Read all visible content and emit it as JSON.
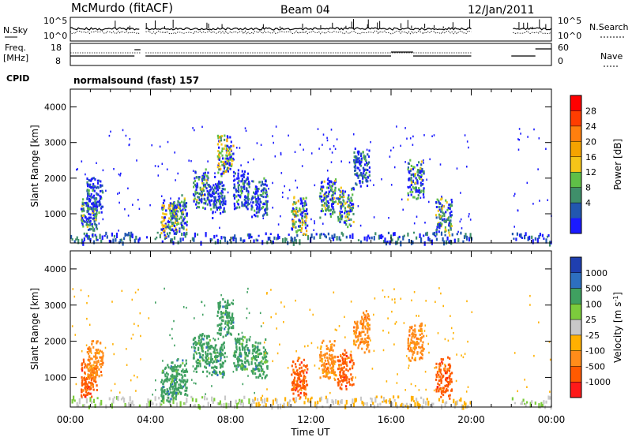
{
  "header": {
    "station": "McMurdo (fitACF)",
    "beam": "Beam 04",
    "date": "12/Jan/2011"
  },
  "top_panels": {
    "nsky_label": "N.Sky",
    "nsearch_label": "N.Search",
    "noise_ticks": [
      "10^5",
      "10^0"
    ],
    "freq_label": "Freq.",
    "freq_unit": "[MHz]",
    "freq_ticks": [
      "18",
      "8"
    ],
    "nave_label": "Nave",
    "nave_ticks": [
      "60",
      "0"
    ],
    "cpid_label": "CPID",
    "cpid_text": "normalsound (fast) 157"
  },
  "colors": {
    "power": [
      "#1a1aff",
      "#2257b0",
      "#3f8f6a",
      "#5fbf47",
      "#f5c518",
      "#f5a300",
      "#ff7f0e",
      "#ff3d00",
      "#ff0000"
    ],
    "velocity": [
      "#ff1a1a",
      "#ff5a00",
      "#ff8c1a",
      "#ffb000",
      "#c8c8c8",
      "#7ccc3c",
      "#3fa060",
      "#2d6fc0",
      "#1f3fb0"
    ]
  },
  "chart_data": [
    {
      "type": "heatmap",
      "title": "Power [dB]",
      "xlabel": "Time UT",
      "ylabel": "Slant Range [km]",
      "x_ticks": [
        "00:00",
        "04:00",
        "08:00",
        "12:00",
        "16:00",
        "20:00",
        "00:00"
      ],
      "xlim": [
        0,
        24
      ],
      "y_ticks": [
        1000,
        2000,
        3000,
        4000
      ],
      "ylim": [
        180,
        4500
      ],
      "colorbar": {
        "label": "Power [dB]",
        "ticks": [
          4,
          8,
          12,
          16,
          20,
          24,
          28
        ]
      },
      "data_gaps_hours": [
        [
          3.5,
          3.75
        ],
        [
          20.0,
          22.0
        ]
      ],
      "echo_features": [
        {
          "t": 0.9,
          "range": 1000,
          "value": 12
        },
        {
          "t": 1.2,
          "range": 1500,
          "value": 8
        },
        {
          "t": 4.9,
          "range": 900,
          "value": 16
        },
        {
          "t": 5.4,
          "range": 1000,
          "value": 12
        },
        {
          "t": 6.5,
          "range": 1700,
          "value": 12
        },
        {
          "t": 7.3,
          "range": 1500,
          "value": 8
        },
        {
          "t": 7.7,
          "range": 2700,
          "value": 16
        },
        {
          "t": 8.5,
          "range": 1700,
          "value": 8
        },
        {
          "t": 9.4,
          "range": 1500,
          "value": 8
        },
        {
          "t": 11.4,
          "range": 1000,
          "value": 16
        },
        {
          "t": 12.8,
          "range": 1500,
          "value": 12
        },
        {
          "t": 13.7,
          "range": 1200,
          "value": 12
        },
        {
          "t": 14.5,
          "range": 2300,
          "value": 8
        },
        {
          "t": 17.2,
          "range": 2000,
          "value": 12
        },
        {
          "t": 18.6,
          "range": 1000,
          "value": 12
        }
      ]
    },
    {
      "type": "heatmap",
      "title": "Velocity [m s^-1]",
      "xlabel": "Time UT",
      "ylabel": "Slant Range [km]",
      "x_ticks": [
        "00:00",
        "04:00",
        "08:00",
        "12:00",
        "16:00",
        "20:00",
        "00:00"
      ],
      "xlim": [
        0,
        24
      ],
      "y_ticks": [
        1000,
        2000,
        3000,
        4000
      ],
      "ylim": [
        180,
        4500
      ],
      "colorbar": {
        "label": "Velocity [m s^-1]",
        "ticks": [
          "1000",
          "500",
          "100",
          "25",
          "-25",
          "-100",
          "-500",
          "-1000"
        ]
      },
      "data_gaps_hours": [
        [
          3.5,
          3.75
        ],
        [
          20.0,
          22.0
        ]
      ],
      "echo_features": [
        {
          "t": 0.9,
          "range": 1000,
          "value": -500
        },
        {
          "t": 1.2,
          "range": 1500,
          "value": -100
        },
        {
          "t": 4.9,
          "range": 900,
          "value": 500
        },
        {
          "t": 5.4,
          "range": 1000,
          "value": 500
        },
        {
          "t": 6.5,
          "range": 1700,
          "value": 500
        },
        {
          "t": 7.3,
          "range": 1500,
          "value": 500
        },
        {
          "t": 7.7,
          "range": 2700,
          "value": 500
        },
        {
          "t": 8.5,
          "range": 1700,
          "value": 500
        },
        {
          "t": 9.4,
          "range": 1500,
          "value": 500
        },
        {
          "t": 11.4,
          "range": 1000,
          "value": -500
        },
        {
          "t": 12.8,
          "range": 1500,
          "value": -100
        },
        {
          "t": 13.7,
          "range": 1200,
          "value": -500
        },
        {
          "t": 14.5,
          "range": 2300,
          "value": -100
        },
        {
          "t": 17.2,
          "range": 2000,
          "value": -100
        },
        {
          "t": 18.6,
          "range": 1000,
          "value": -500
        }
      ]
    }
  ]
}
